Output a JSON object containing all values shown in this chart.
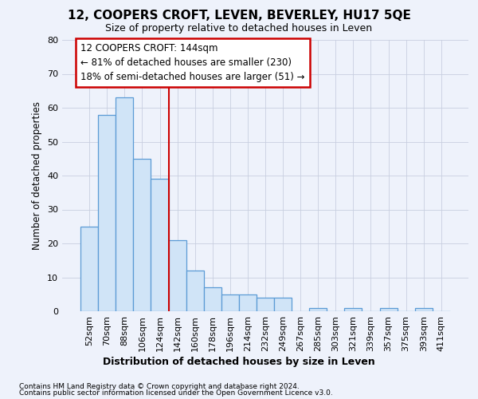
{
  "title": "12, COOPERS CROFT, LEVEN, BEVERLEY, HU17 5QE",
  "subtitle": "Size of property relative to detached houses in Leven",
  "xlabel": "Distribution of detached houses by size in Leven",
  "ylabel": "Number of detached properties",
  "bar_color": "#d0e4f7",
  "bar_edge_color": "#5b9bd5",
  "background_color": "#eef2fb",
  "grid_color": "#c8cfe0",
  "categories": [
    "52sqm",
    "70sqm",
    "88sqm",
    "106sqm",
    "124sqm",
    "142sqm",
    "160sqm",
    "178sqm",
    "196sqm",
    "214sqm",
    "232sqm",
    "249sqm",
    "267sqm",
    "285sqm",
    "303sqm",
    "321sqm",
    "339sqm",
    "357sqm",
    "375sqm",
    "393sqm",
    "411sqm"
  ],
  "values": [
    25,
    58,
    63,
    45,
    39,
    21,
    12,
    7,
    5,
    5,
    4,
    4,
    0,
    1,
    0,
    1,
    0,
    1,
    0,
    1,
    0
  ],
  "ylim": [
    0,
    80
  ],
  "yticks": [
    0,
    10,
    20,
    30,
    40,
    50,
    60,
    70,
    80
  ],
  "property_line_color": "#cc0000",
  "property_line_x": 4.5,
  "annotation_text": "12 COOPERS CROFT: 144sqm\n← 81% of detached houses are smaller (230)\n18% of semi-detached houses are larger (51) →",
  "annotation_box_color": "#cc0000",
  "footnote1": "Contains HM Land Registry data © Crown copyright and database right 2024.",
  "footnote2": "Contains public sector information licensed under the Open Government Licence v3.0."
}
